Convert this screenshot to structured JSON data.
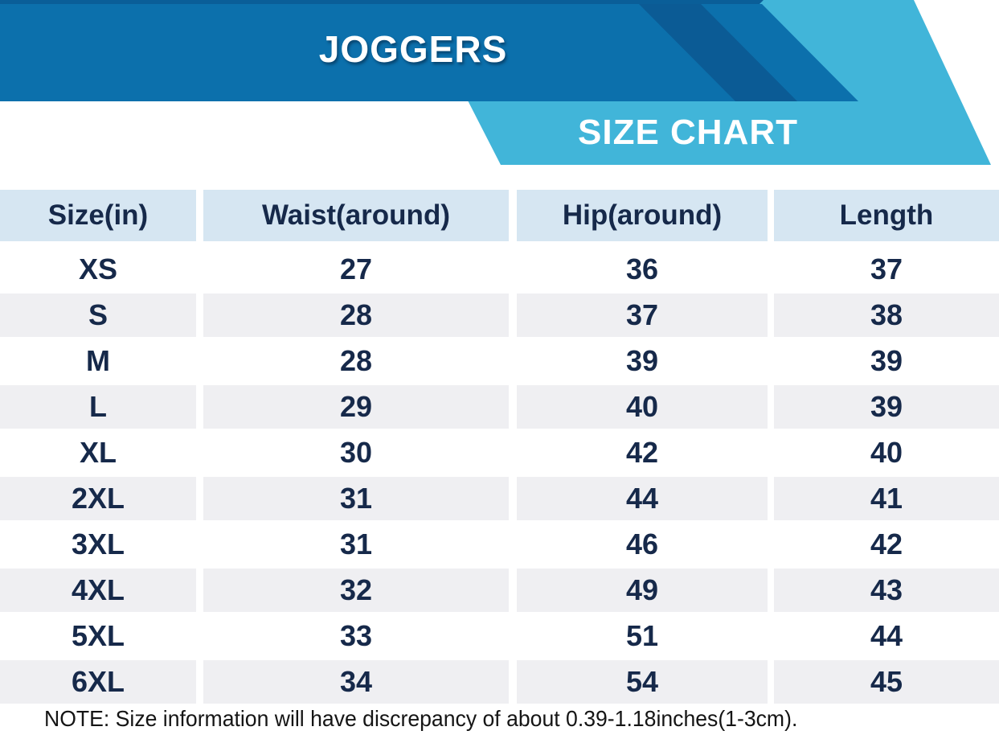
{
  "banner": {
    "title": "JOGGERS",
    "subtitle": "SIZE CHART"
  },
  "colors": {
    "banner_blue": "#0C70AC",
    "banner_navy_stripe": "#0B5B95",
    "ribbon_cyan": "#41B5D9",
    "header_cell_bg": "#D6E6F2",
    "alt_row_bg": "#EFEFF2",
    "cell_text": "#16294A",
    "title_text": "#FFFFFF",
    "note_text": "#151515"
  },
  "chart_data": {
    "type": "table",
    "title": "JOGGERS",
    "subtitle": "SIZE CHART",
    "unit": "inches",
    "columns": [
      "Size(in)",
      "Waist(around)",
      "Hip(around)",
      "Length"
    ],
    "rows": [
      [
        "XS",
        "27",
        "36",
        "37"
      ],
      [
        "S",
        "28",
        "37",
        "38"
      ],
      [
        "M",
        "28",
        "39",
        "39"
      ],
      [
        "L",
        "29",
        "40",
        "39"
      ],
      [
        "XL",
        "30",
        "42",
        "40"
      ],
      [
        "2XL",
        "31",
        "44",
        "41"
      ],
      [
        "3XL",
        "31",
        "46",
        "42"
      ],
      [
        "4XL",
        "32",
        "49",
        "43"
      ],
      [
        "5XL",
        "33",
        "51",
        "44"
      ],
      [
        "6XL",
        "34",
        "54",
        "45"
      ]
    ],
    "note": "NOTE: Size information will have discrepancy of about 0.39-1.18inches(1-3cm)."
  }
}
